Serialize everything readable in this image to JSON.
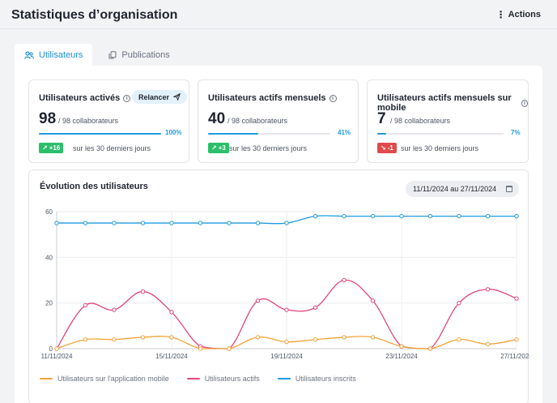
{
  "header": {
    "title": "Statistiques d’organisation",
    "actions_label": "Actions"
  },
  "tabs": [
    {
      "label": "Utilisateurs",
      "active": true
    },
    {
      "label": "Publications",
      "active": false
    }
  ],
  "cards": [
    {
      "title": "Utilisateurs activés",
      "value": "98",
      "sub": "/ 98 collaborateurs",
      "progress": 1.0,
      "pct": "100%",
      "badge": "+16",
      "badge_dir": "up",
      "badge_text": "sur les 30 derniers jours",
      "button_label": "Relancer"
    },
    {
      "title": "Utilisateurs actifs mensuels",
      "value": "40",
      "sub": "/ 98 collaborateurs",
      "progress": 0.41,
      "pct": "41%",
      "badge": "+3",
      "badge_dir": "up",
      "badge_text": "sur les 30 derniers jours"
    },
    {
      "title": "Utilisateurs actifs mensuels sur mobile",
      "value": "7",
      "sub": "/ 98 collaborateurs",
      "progress": 0.07,
      "pct": "7%",
      "badge": "-1",
      "badge_dir": "down",
      "badge_text": "sur les 30 derniers jours"
    }
  ],
  "chart_section": {
    "title": "Évolution des utilisateurs",
    "date_range": "11/11/2024 au 27/11/2024"
  },
  "colors": {
    "accent": "#1e9be0",
    "mobile": "#f2a33a",
    "actifs": "#e2457a",
    "inscrits": "#1e9be0"
  },
  "chart_data": {
    "type": "line",
    "title": "Évolution des utilisateurs",
    "x": [
      "11/11/2024",
      "12/11/2024",
      "13/11/2024",
      "14/11/2024",
      "15/11/2024",
      "16/11/2024",
      "17/11/2024",
      "18/11/2024",
      "19/11/2024",
      "20/11/2024",
      "21/11/2024",
      "22/11/2024",
      "23/11/2024",
      "24/11/2024",
      "25/11/2024",
      "26/11/2024",
      "27/11/2024"
    ],
    "x_tick_labels": [
      "11/11/2024",
      "15/11/2024",
      "19/11/2024",
      "23/11/2024",
      "27/11/2024"
    ],
    "x_tick_indices": [
      0,
      4,
      8,
      12,
      16
    ],
    "ylim": [
      0,
      60
    ],
    "y_ticks": [
      0,
      20,
      40,
      60
    ],
    "grid": true,
    "legend": "bottom-left",
    "series": [
      {
        "name": "Utilisateurs sur l'application mobile",
        "color": "#f2a33a",
        "values": [
          0,
          4,
          4,
          5,
          5,
          0,
          0,
          5,
          3,
          4,
          5,
          5,
          1,
          0,
          4,
          2,
          4
        ]
      },
      {
        "name": "Utilisateurs actifs",
        "color": "#e2457a",
        "values": [
          0,
          19,
          17,
          25,
          16,
          1,
          0,
          21,
          17,
          18,
          30,
          21,
          1,
          0,
          20,
          26,
          22
        ]
      },
      {
        "name": "Utilisateurs inscrits",
        "color": "#1e9be0",
        "values": [
          55,
          55,
          55,
          55,
          55,
          55,
          55,
          55,
          55,
          58,
          58,
          58,
          58,
          58,
          58,
          58,
          58
        ]
      }
    ]
  }
}
